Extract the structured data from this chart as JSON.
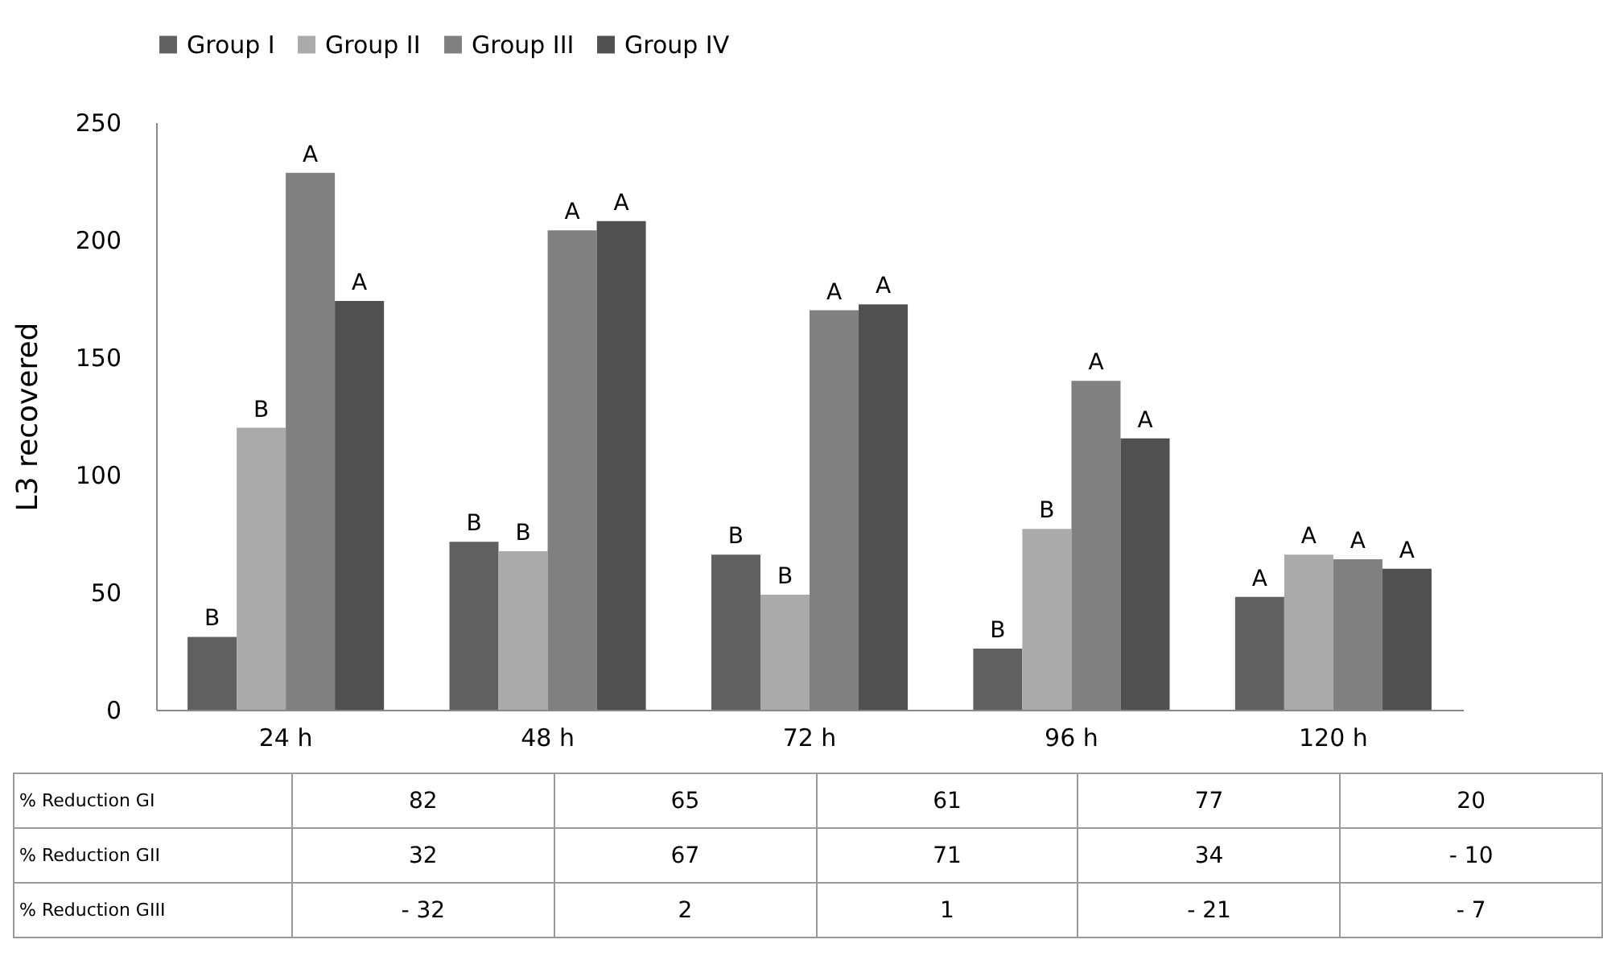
{
  "chart_data": {
    "type": "bar",
    "ylabel": "L3 recovered",
    "categories": [
      "24 h",
      "48 h",
      "72 h",
      "96 h",
      "120 h"
    ],
    "series": [
      {
        "name": "Group I",
        "color": "#606060",
        "values": [
          31,
          71.5,
          66,
          26,
          48
        ],
        "value_labels": [
          "B",
          "B",
          "B",
          "B",
          "A"
        ]
      },
      {
        "name": "Group II",
        "color": "#aaaaaa",
        "values": [
          120,
          67.5,
          49,
          77,
          66
        ],
        "value_labels": [
          "B",
          "B",
          "B",
          "B",
          "A"
        ]
      },
      {
        "name": "Group III",
        "color": "#808080",
        "values": [
          228.5,
          204,
          170,
          140,
          64
        ],
        "value_labels": [
          "A",
          "A",
          "A",
          "A",
          "A"
        ]
      },
      {
        "name": "Group IV",
        "color": "#505050",
        "values": [
          174,
          208,
          172.5,
          115.5,
          60
        ],
        "value_labels": [
          "A",
          "A",
          "A",
          "A",
          "A"
        ]
      }
    ],
    "ylim": [
      0,
      250
    ],
    "yticks": [
      0,
      50,
      100,
      150,
      200,
      250
    ],
    "grid": false,
    "legend": "top",
    "annotations": [
      "% Reduction GI",
      "82",
      "65",
      "61",
      "77",
      "20",
      "% Reduction GII",
      "32",
      "67",
      "71",
      "34",
      "- 10",
      "% Reduction GIII",
      "- 32",
      "2",
      "1",
      "- 21",
      "- 7"
    ]
  }
}
